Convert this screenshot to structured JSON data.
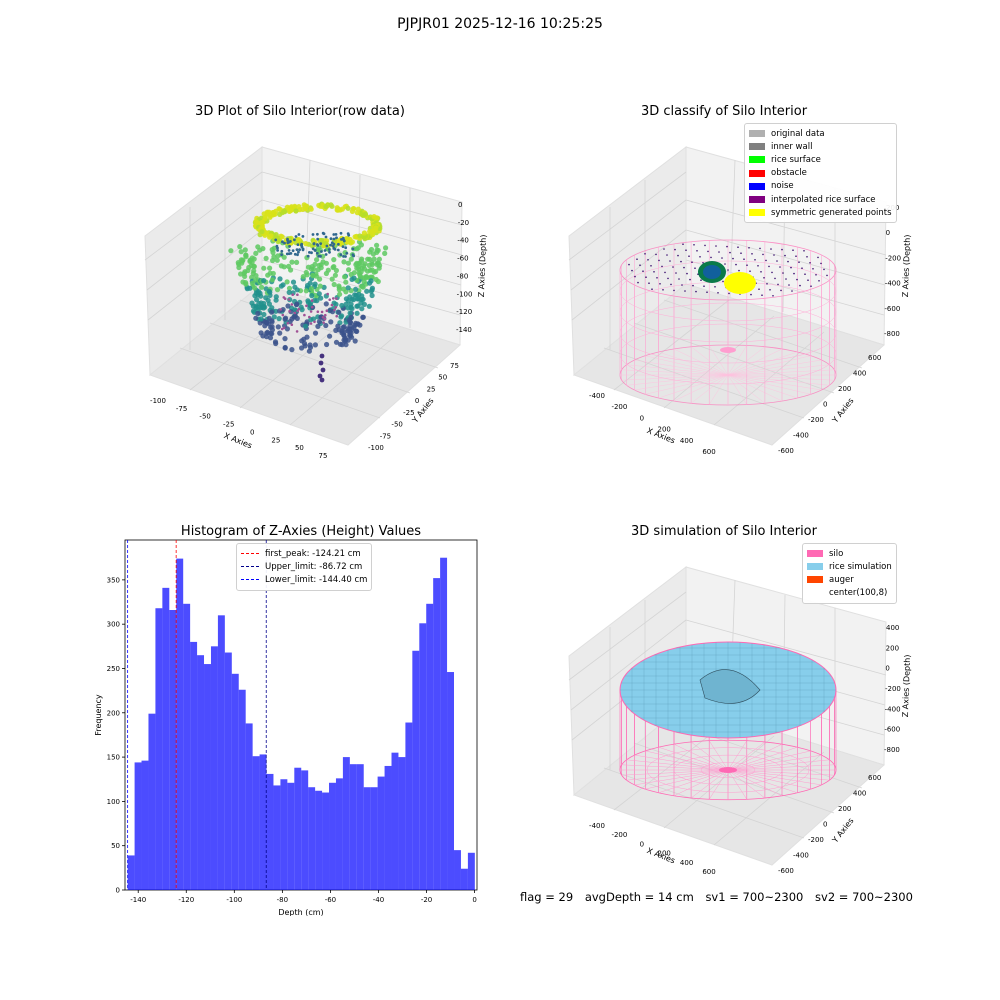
{
  "suptitle": "PJPJR01 2025-12-16 10:25:25",
  "chart_data": [
    {
      "type": "scatter",
      "title": "3D Plot of Silo Interior(row data)",
      "xlabel": "X Axies",
      "ylabel": "Y Axies",
      "zlabel": "Z Axies (Depth)",
      "x_ticks": [
        "-100",
        "-75",
        "-50",
        "-25",
        "0",
        "25",
        "50",
        "75"
      ],
      "y_ticks": [
        "75",
        "50",
        "25",
        "0",
        "-25",
        "-50",
        "-75",
        "-100"
      ],
      "z_ticks": [
        "0",
        "-20",
        "-40",
        "-60",
        "-80",
        "-100",
        "-120",
        "-140"
      ],
      "colormap": "viridis"
    },
    {
      "type": "scatter",
      "title": "3D classify of Silo Interior",
      "xlabel": "X Axies",
      "ylabel": "Y Axies",
      "zlabel": "Z Axies (Depth)",
      "x_ticks": [
        "-400",
        "-200",
        "0",
        "200",
        "400",
        "600"
      ],
      "y_ticks": [
        "600",
        "400",
        "200",
        "0",
        "-200",
        "-400",
        "-600"
      ],
      "z_ticks": [
        "200",
        "0",
        "-200",
        "-400",
        "-600",
        "-800"
      ],
      "legend": [
        {
          "label": "original data",
          "color": "#b0b0b0"
        },
        {
          "label": "inner wall",
          "color": "#808080"
        },
        {
          "label": "rice surface",
          "color": "#00ff00"
        },
        {
          "label": "obstacle",
          "color": "#ff0000"
        },
        {
          "label": "noise",
          "color": "#0000ff"
        },
        {
          "label": "interpolated rice surface",
          "color": "#800080"
        },
        {
          "label": "symmetric generated points",
          "color": "#ffff00"
        }
      ]
    },
    {
      "type": "bar",
      "title": "Histogram of Z-Axies (Height) Values",
      "xlabel": "Depth (cm)",
      "ylabel": "Frequency",
      "xlim": [
        -145.5,
        1
      ],
      "ylim": [
        0,
        395
      ],
      "x_ticks": [
        -140,
        -120,
        -100,
        -80,
        -60,
        -40,
        -20,
        0
      ],
      "y_ticks": [
        0,
        50,
        100,
        150,
        200,
        250,
        300,
        350
      ],
      "bin_start": -144.4,
      "bin_width": 2.89,
      "values": [
        39,
        144,
        146,
        199,
        318,
        341,
        316,
        374,
        323,
        280,
        265,
        255,
        275,
        310,
        268,
        244,
        226,
        188,
        151,
        153,
        131,
        118,
        125,
        121,
        138,
        135,
        116,
        112,
        110,
        121,
        126,
        150,
        142,
        142,
        116,
        116,
        128,
        140,
        155,
        150,
        189,
        270,
        301,
        323,
        352,
        375,
        246,
        45,
        24,
        42
      ],
      "color": "#0000ff",
      "lines": [
        {
          "label": "first_peak: -124.21 cm",
          "x": -124.21,
          "color": "#ff0000"
        },
        {
          "label": "Upper_limit: -86.72 cm",
          "x": -86.72,
          "color": "#00008b"
        },
        {
          "label": "Lower_limit: -144.40 cm",
          "x": -144.4,
          "color": "#0000ff"
        }
      ]
    },
    {
      "type": "area",
      "title": "3D simulation of Silo Interior",
      "xlabel": "X Axies",
      "ylabel": "Y Axies",
      "zlabel": "Z Axies (Depth)",
      "x_ticks": [
        "-400",
        "-200",
        "0",
        "200",
        "400",
        "600"
      ],
      "y_ticks": [
        "600",
        "400",
        "200",
        "0",
        "-200",
        "-400",
        "-600"
      ],
      "z_ticks": [
        "400",
        "200",
        "0",
        "-200",
        "-400",
        "-600",
        "-800"
      ],
      "legend": [
        {
          "label": "silo",
          "color": "#ff69b4"
        },
        {
          "label": "rice simulation",
          "color": "#87ceeb"
        },
        {
          "label": "auger",
          "color": "#ff4500"
        },
        {
          "label": "center(100,8)",
          "color": "#ffffff"
        }
      ]
    }
  ],
  "status": {
    "flag": "flag = 29",
    "avg": "avgDepth = 14 cm",
    "sv1": "sv1 = 700~2300",
    "sv2": "sv2 = 700~2300"
  }
}
